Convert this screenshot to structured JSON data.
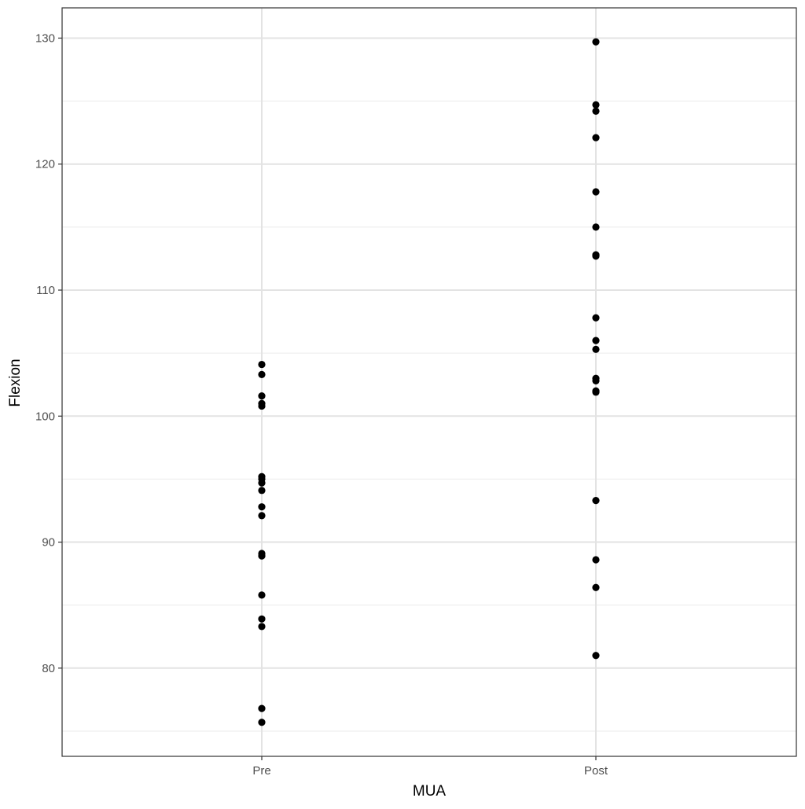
{
  "chart_data": {
    "type": "scatter",
    "title": "",
    "xlabel": "MUA",
    "ylabel": "Flexion",
    "categories": [
      "Pre",
      "Post"
    ],
    "ylim": [
      73,
      132.4
    ],
    "y_major_ticks": [
      80,
      90,
      100,
      110,
      120,
      130
    ],
    "y_minor_ticks": [
      75,
      85,
      95,
      105,
      115,
      125
    ],
    "grid": true,
    "legend": "none",
    "point_color": "#000000",
    "series": [
      {
        "category": "Pre",
        "values": [
          104.1,
          103.3,
          101.6,
          101.0,
          100.8,
          95.2,
          95.0,
          94.7,
          94.1,
          92.8,
          92.1,
          89.1,
          88.9,
          85.8,
          83.9,
          83.3,
          76.8,
          75.7
        ]
      },
      {
        "category": "Post",
        "values": [
          129.7,
          124.7,
          124.2,
          122.1,
          117.8,
          115.0,
          112.8,
          112.7,
          107.8,
          106.0,
          105.3,
          103.0,
          102.8,
          102.0,
          101.9,
          93.3,
          88.6,
          86.4,
          81.0
        ]
      }
    ]
  }
}
